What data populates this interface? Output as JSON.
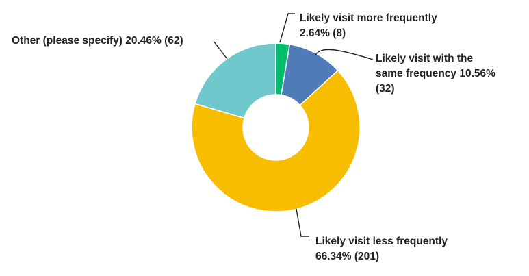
{
  "chart_data": {
    "type": "pie",
    "donut": true,
    "title": "",
    "slices": [
      {
        "label": "Likely visit more frequently",
        "percent": 2.64,
        "count": 8,
        "color": "#00be6e",
        "text": "Likely visit more frequently\n2.64% (8)"
      },
      {
        "label": "Likely visit with the same frequency",
        "percent": 10.56,
        "count": 32,
        "color": "#4f7bb8",
        "text": "Likely visit with the\nsame frequency 10.56%\n(32)"
      },
      {
        "label": "Likely visit less frequently",
        "percent": 66.34,
        "count": 201,
        "color": "#f7bd00",
        "text": "Likely visit less frequently\n66.34% (201)"
      },
      {
        "label": "Other (please specify)",
        "percent": 20.46,
        "count": 62,
        "color": "#6ec8cc",
        "text": "Other (please specify) 20.46% (62)"
      }
    ]
  }
}
